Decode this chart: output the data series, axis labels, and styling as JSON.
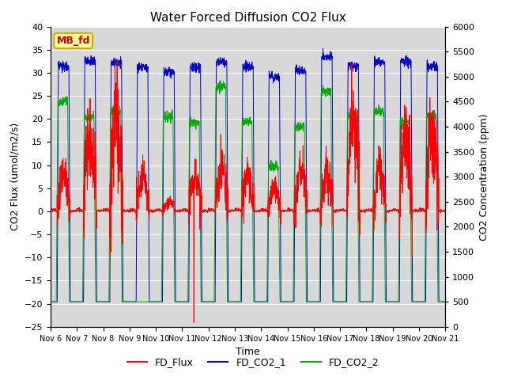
{
  "title": "Water Forced Diffusion CO2 Flux",
  "xlabel": "Time",
  "ylabel_left": "CO2 Flux (umol/m2/s)",
  "ylabel_right": "CO2 Concentration (ppm)",
  "ylim_left": [
    -25,
    40
  ],
  "ylim_right": [
    0,
    6000
  ],
  "yticks_left": [
    -25,
    -20,
    -15,
    -10,
    -5,
    0,
    5,
    10,
    15,
    20,
    25,
    30,
    35,
    40
  ],
  "yticks_right": [
    0,
    500,
    1000,
    1500,
    2000,
    2500,
    3000,
    3500,
    4000,
    4500,
    5000,
    5500,
    6000
  ],
  "xtick_labels": [
    "Nov 6",
    "Nov 7",
    "Nov 8",
    "Nov 9",
    "Nov 10",
    "Nov 11",
    "Nov 12",
    "Nov 13",
    "Nov 14",
    "Nov 15",
    "Nov 16",
    "Nov 17",
    "Nov 18",
    "Nov 19",
    "Nov 20",
    "Nov 21"
  ],
  "colors": {
    "FD_Flux": "#ff0000",
    "FD_CO2_1": "#0000cc",
    "FD_CO2_2": "#00aa00"
  },
  "annotation_text": "MB_fd",
  "annotation_bg": "#ffff99",
  "annotation_border": "#ccaa00",
  "bg_color": "#d8d8d8",
  "title_fontsize": 11,
  "axis_fontsize": 9,
  "tick_fontsize": 8
}
